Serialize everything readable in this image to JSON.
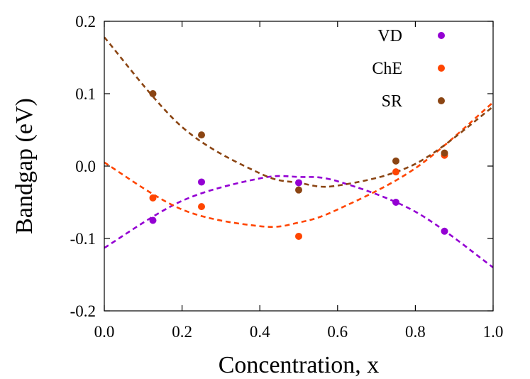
{
  "chart_data": {
    "type": "scatter",
    "xlabel": "Concentration, x",
    "ylabel": "Bandgap (eV)",
    "xlim": [
      0.0,
      1.0
    ],
    "ylim": [
      -0.2,
      0.2
    ],
    "x_ticks": [
      "0.0",
      "0.2",
      "0.4",
      "0.6",
      "0.8",
      "1.0"
    ],
    "y_ticks": [
      "-0.2",
      "-0.1",
      "0.0",
      "0.1",
      "0.2"
    ],
    "grid": false,
    "legend_position": "top-right",
    "series": [
      {
        "name": "VD",
        "color": "#9400d3",
        "x": [
          0.125,
          0.25,
          0.5,
          0.75,
          0.875
        ],
        "y": [
          -0.075,
          -0.022,
          -0.023,
          -0.05,
          -0.09
        ],
        "fit_curve_x": [
          0.0,
          0.2,
          0.4,
          0.5,
          0.6,
          0.8,
          1.0
        ],
        "fit_curve_y": [
          -0.113,
          -0.048,
          -0.017,
          -0.015,
          -0.021,
          -0.063,
          -0.14
        ]
      },
      {
        "name": "ChE",
        "color": "#ff4500",
        "x": [
          0.125,
          0.25,
          0.5,
          0.75,
          0.875
        ],
        "y": [
          -0.044,
          -0.056,
          -0.097,
          -0.008,
          0.015
        ],
        "fit_curve_x": [
          0.0,
          0.2,
          0.4,
          0.5,
          0.6,
          0.8,
          1.0
        ],
        "fit_curve_y": [
          0.005,
          -0.06,
          -0.083,
          -0.078,
          -0.06,
          -0.003,
          0.088
        ]
      },
      {
        "name": "SR",
        "color": "#8b4513",
        "x": [
          0.125,
          0.25,
          0.5,
          0.75,
          0.875
        ],
        "y": [
          0.1,
          0.043,
          -0.033,
          0.007,
          0.018
        ],
        "fit_curve_x": [
          0.0,
          0.2,
          0.4,
          0.5,
          0.6,
          0.8,
          1.0
        ],
        "fit_curve_y": [
          0.178,
          0.054,
          -0.01,
          -0.023,
          -0.027,
          0.003,
          0.082
        ]
      }
    ]
  }
}
